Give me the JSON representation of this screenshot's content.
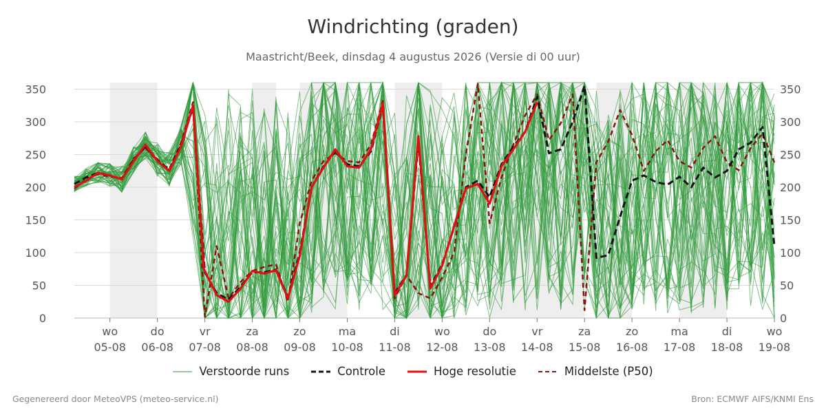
{
  "title": "Windrichting (graden)",
  "subtitle": "Maastricht/Beek, dinsdag  4 augustus 2026 (Versie di 00 uur)",
  "footer_left": "Gegenereerd door MeteoVPS (meteo-service.nl)",
  "footer_right": "Bron: ECMWF AIFS/KNMI Ens",
  "chart_data": {
    "type": "line",
    "ylim": [
      0,
      360
    ],
    "y_ticks": [
      0,
      50,
      100,
      150,
      200,
      250,
      300,
      350
    ],
    "x_range_days": [
      4.25,
      19.0
    ],
    "x_ticks": [
      {
        "day": 5,
        "weekday": "wo",
        "date": "05-08"
      },
      {
        "day": 6,
        "weekday": "do",
        "date": "06-08"
      },
      {
        "day": 7,
        "weekday": "vr",
        "date": "07-08"
      },
      {
        "day": 8,
        "weekday": "za",
        "date": "08-08"
      },
      {
        "day": 9,
        "weekday": "zo",
        "date": "09-08"
      },
      {
        "day": 10,
        "weekday": "ma",
        "date": "10-08"
      },
      {
        "day": 11,
        "weekday": "di",
        "date": "11-08"
      },
      {
        "day": 12,
        "weekday": "wo",
        "date": "12-08"
      },
      {
        "day": 13,
        "weekday": "do",
        "date": "13-08"
      },
      {
        "day": 14,
        "weekday": "vr",
        "date": "14-08"
      },
      {
        "day": 15,
        "weekday": "za",
        "date": "15-08"
      },
      {
        "day": 16,
        "weekday": "zo",
        "date": "16-08"
      },
      {
        "day": 17,
        "weekday": "ma",
        "date": "17-08"
      },
      {
        "day": 18,
        "weekday": "di",
        "date": "18-08"
      },
      {
        "day": 19,
        "weekday": "wo",
        "date": "19-08"
      }
    ],
    "shaded_days": [
      [
        5,
        6
      ],
      [
        8,
        8.5
      ],
      [
        9,
        10
      ],
      [
        11,
        12
      ],
      [
        13,
        15
      ],
      [
        15.25,
        16
      ],
      [
        17,
        18
      ]
    ],
    "grid": true,
    "legend_position": "bottom",
    "legend": [
      {
        "label": "Verstoorde runs",
        "color": "#2e9a3a",
        "style": "thin"
      },
      {
        "label": "Controle",
        "color": "#111111",
        "style": "dashed"
      },
      {
        "label": "Hoge resolutie",
        "color": "#dd1111",
        "style": "solid"
      },
      {
        "label": "Middelste (P50)",
        "color": "#8b1010",
        "style": "dashed"
      }
    ],
    "ensemble_members": 50,
    "series": [
      {
        "name": "Hoge resolutie",
        "color": "#dd1111",
        "x": [
          4.25,
          4.5,
          4.75,
          5.0,
          5.25,
          5.5,
          5.75,
          6.0,
          6.25,
          6.5,
          6.75,
          6.98,
          7.25,
          7.5,
          7.75,
          8.0,
          8.25,
          8.5,
          8.75,
          9.0,
          9.25,
          9.5,
          9.75,
          10.0,
          10.25,
          10.5,
          10.75,
          11.0,
          11.25,
          11.5,
          11.75,
          12.0,
          12.25,
          12.5,
          12.75,
          13.0,
          13.25,
          13.5,
          13.75,
          14.0
        ],
        "y": [
          200,
          210,
          222,
          218,
          212,
          240,
          265,
          240,
          225,
          262,
          325,
          75,
          35,
          25,
          45,
          72,
          68,
          73,
          30,
          95,
          200,
          230,
          258,
          232,
          230,
          258,
          328,
          35,
          65,
          278,
          45,
          80,
          140,
          198,
          205,
          175,
          232,
          258,
          285,
          330
        ]
      },
      {
        "name": "Controle",
        "color": "#111111",
        "x": [
          4.25,
          4.5,
          4.75,
          5.0,
          5.25,
          5.5,
          5.75,
          6.0,
          6.25,
          6.5,
          6.75,
          7.0,
          7.25,
          7.5,
          7.75,
          8.0,
          8.25,
          8.5,
          8.75,
          9.0,
          9.25,
          9.5,
          9.75,
          10.0,
          10.25,
          10.5,
          10.75,
          11.0,
          11.25,
          11.5,
          11.75,
          12.0,
          12.25,
          12.5,
          12.75,
          13.0,
          13.25,
          13.5,
          13.75,
          14.0,
          14.25,
          14.5,
          14.75,
          15.0,
          15.25,
          15.5,
          15.75,
          16.0,
          16.25,
          16.5,
          16.75,
          17.0,
          17.25,
          17.5,
          17.75,
          18.0,
          18.25,
          18.5,
          18.75,
          19.0
        ],
        "y": [
          205,
          215,
          222,
          218,
          212,
          242,
          262,
          242,
          226,
          265,
          322,
          70,
          38,
          28,
          48,
          70,
          70,
          74,
          32,
          100,
          200,
          232,
          255,
          235,
          232,
          255,
          325,
          38,
          66,
          270,
          48,
          82,
          138,
          200,
          210,
          185,
          235,
          262,
          285,
          338,
          252,
          258,
          300,
          355,
          92,
          96,
          155,
          210,
          218,
          208,
          204,
          216,
          200,
          230,
          215,
          225,
          258,
          268,
          292,
          110
        ]
      },
      {
        "name": "Middelste (P50)",
        "color": "#8b1010",
        "x": [
          4.25,
          4.5,
          4.75,
          5.0,
          5.25,
          5.5,
          5.75,
          6.0,
          6.25,
          6.5,
          6.75,
          7.0,
          7.25,
          7.5,
          7.75,
          8.0,
          8.25,
          8.5,
          8.75,
          9.0,
          9.25,
          9.5,
          9.75,
          10.0,
          10.25,
          10.5,
          10.75,
          11.0,
          11.25,
          11.5,
          11.75,
          12.0,
          12.25,
          12.5,
          12.75,
          13.0,
          13.25,
          13.5,
          13.75,
          14.0,
          14.25,
          14.5,
          14.75,
          15.0,
          15.25,
          15.5,
          15.75,
          16.0,
          16.25,
          16.5,
          16.75,
          17.0,
          17.25,
          17.5,
          17.75,
          18.0,
          18.25,
          18.5,
          18.75,
          19.0
        ],
        "y": [
          198,
          212,
          220,
          216,
          214,
          244,
          260,
          240,
          228,
          268,
          330,
          2,
          110,
          30,
          55,
          72,
          78,
          82,
          25,
          145,
          210,
          240,
          252,
          240,
          238,
          265,
          332,
          30,
          65,
          38,
          30,
          62,
          100,
          250,
          358,
          145,
          215,
          265,
          310,
          342,
          272,
          298,
          342,
          12,
          238,
          270,
          318,
          280,
          225,
          255,
          272,
          240,
          230,
          260,
          278,
          238,
          226,
          260,
          282,
          238
        ]
      }
    ]
  }
}
